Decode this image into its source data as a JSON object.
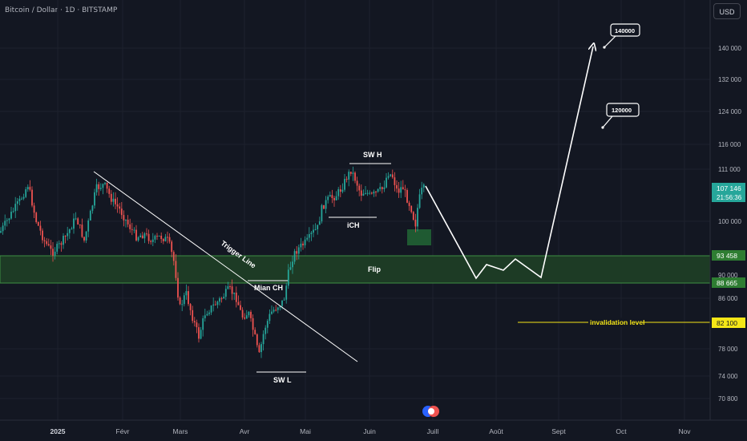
{
  "header": {
    "title": "Bitcoin / Dollar · 1D · BITSTAMP",
    "currency": "USD"
  },
  "colors": {
    "background": "#131722",
    "bull": "#26a69a",
    "bear": "#ef5350",
    "zone": "#2e7d32",
    "line": "#ffffff",
    "invalidation": "#f5e617"
  },
  "chart_data": {
    "type": "candlestick",
    "y_ticks": [
      "140 000",
      "132 000",
      "124 000",
      "116 000",
      "111 000",
      "100 000",
      "90 000",
      "86 000",
      "78 000",
      "74 000",
      "70 800"
    ],
    "x_ticks": [
      "2025",
      "Févr",
      "Mars",
      "Avr",
      "Mai",
      "Juin",
      "Juill",
      "Août",
      "Sept",
      "Oct",
      "Nov"
    ],
    "price_labels": [
      {
        "name": "current",
        "value": "107 146",
        "sub": "21:56:36",
        "color": "#26a69a"
      },
      {
        "name": "zone-top",
        "value": "93 458",
        "color": "#2e7d32"
      },
      {
        "name": "zone-bottom",
        "value": "88 665",
        "color": "#2e7d32"
      },
      {
        "name": "invalidation",
        "value": "82 100",
        "color": "#f5e617"
      }
    ],
    "annotations": {
      "trigger_line": "Trigger Line",
      "sw_h": "SW H",
      "ich": "iCH",
      "mian_ch": "Mian CH",
      "sw_l": "SW L",
      "flip": "Flip",
      "invalidation": "invalidation level",
      "target_1": "140000",
      "target_2": "120000"
    }
  }
}
